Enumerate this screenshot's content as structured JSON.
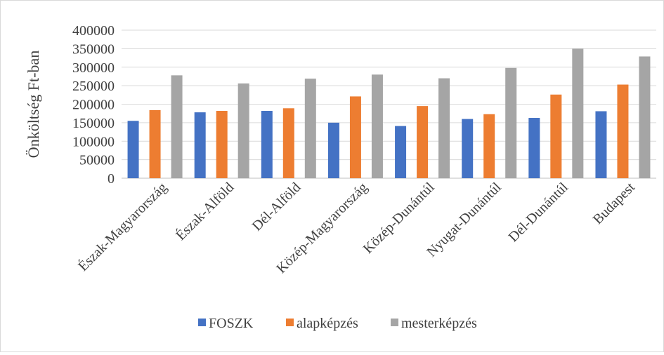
{
  "chart_data": {
    "type": "bar",
    "title": "",
    "xlabel": "",
    "ylabel": "Önköltség Ft-ban",
    "ylim": [
      0,
      400000
    ],
    "yticks": [
      0,
      50000,
      100000,
      150000,
      200000,
      250000,
      300000,
      350000,
      400000
    ],
    "grid": true,
    "legend_position": "bottom",
    "categories": [
      "Észak-Magyarország",
      "Észak-Alföld",
      "Dél-Alföld",
      "Közép-Magyarország",
      "Közép-Dunántúl",
      "Nyugat-Dunántúl",
      "Dél-Dunántúl",
      "Budapest"
    ],
    "series": [
      {
        "name": "FOSZK",
        "color": "#4472C4",
        "values": [
          155000,
          178000,
          182000,
          150000,
          141000,
          160000,
          163000,
          181000
        ]
      },
      {
        "name": "alapképzés",
        "color": "#ED7D31",
        "values": [
          184000,
          182000,
          189000,
          221000,
          195000,
          173000,
          226000,
          253000
        ]
      },
      {
        "name": "mesterképzés",
        "color": "#A5A5A5",
        "values": [
          278000,
          256000,
          269000,
          280000,
          270000,
          298000,
          350000,
          329000
        ]
      }
    ]
  }
}
